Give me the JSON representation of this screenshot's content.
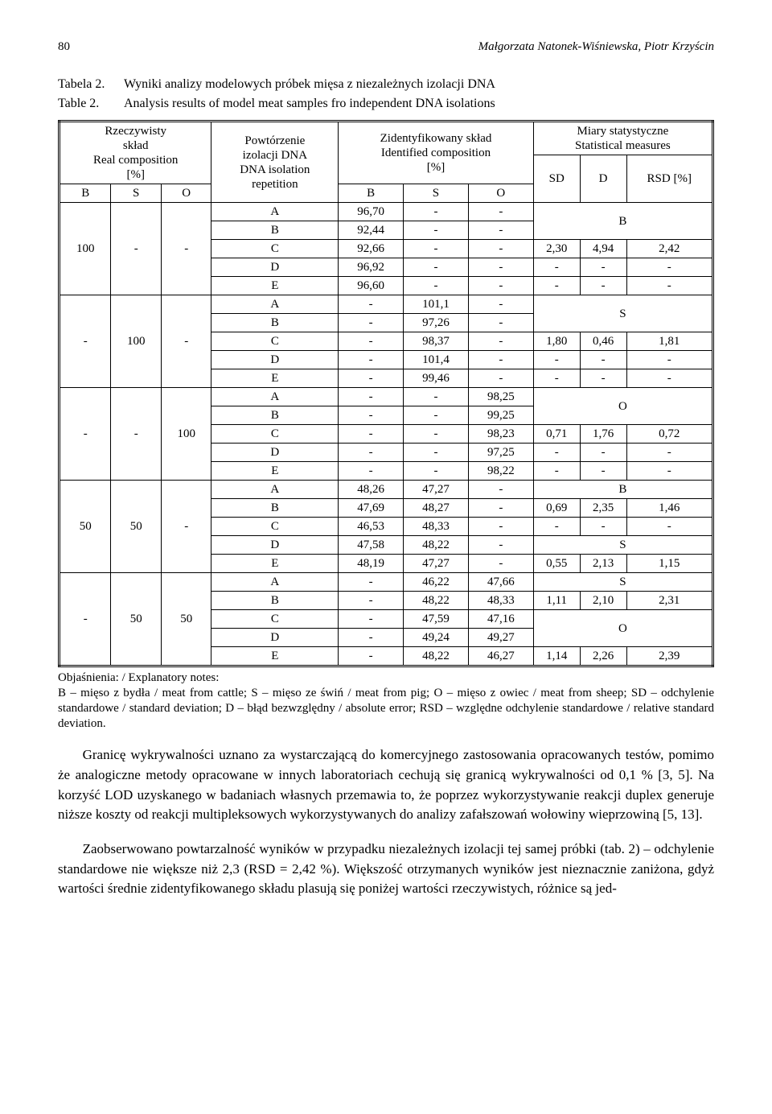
{
  "header": {
    "page_no": "80",
    "authors_it": "Małgorzata Natonek-Wiśniewska, Piotr Krzyścin"
  },
  "captions": {
    "t2_lbl": "Tabela 2.",
    "t2_txt": "Wyniki analizy modelowych próbek mięsa z niezależnych izolacji DNA",
    "t2e_lbl": "Table 2.",
    "t2e_txt": "Analysis results of model meat samples fro independent DNA isolations"
  },
  "thead": {
    "real": "Rzeczywisty\nskład\nReal composition\n[%]",
    "rep": "Powtórzenie\nizolacji DNA\nDNA isolation\nrepetition",
    "ident": "Zidentyfikowany skład\nIdentified composition\n[%]",
    "stats": "Miary statystyczne\nStatistical measures",
    "B": "B",
    "S": "S",
    "O": "O",
    "SD": "SD",
    "D": "D",
    "RSD": "RSD [%]"
  },
  "blocks": [
    {
      "real": [
        "100",
        "-",
        "-"
      ],
      "rows": [
        {
          "rep": "A",
          "b": "96,70",
          "s": "-",
          "o": "-",
          "stat": {
            "type": "label",
            "span": 2,
            "text": "B"
          }
        },
        {
          "rep": "B",
          "b": "92,44",
          "s": "-",
          "o": "-"
        },
        {
          "rep": "C",
          "b": "92,66",
          "s": "-",
          "o": "-",
          "stat": {
            "type": "vals",
            "sd": "2,30",
            "d": "4,94",
            "rsd": "2,42"
          }
        },
        {
          "rep": "D",
          "b": "96,92",
          "s": "-",
          "o": "-",
          "stat": {
            "type": "vals",
            "sd": "-",
            "d": "-",
            "rsd": "-"
          }
        },
        {
          "rep": "E",
          "b": "96,60",
          "s": "-",
          "o": "-",
          "stat": {
            "type": "vals",
            "sd": "-",
            "d": "-",
            "rsd": "-"
          }
        }
      ]
    },
    {
      "real": [
        "-",
        "100",
        "-"
      ],
      "rows": [
        {
          "rep": "A",
          "b": "-",
          "s": "101,1",
          "o": "-",
          "stat": {
            "type": "label",
            "span": 2,
            "text": "S"
          }
        },
        {
          "rep": "B",
          "b": "-",
          "s": "97,26",
          "o": "-"
        },
        {
          "rep": "C",
          "b": "-",
          "s": "98,37",
          "o": "-",
          "stat": {
            "type": "vals",
            "sd": "1,80",
            "d": "0,46",
            "rsd": "1,81"
          }
        },
        {
          "rep": "D",
          "b": "-",
          "s": "101,4",
          "o": "-",
          "stat": {
            "type": "vals",
            "sd": "-",
            "d": "-",
            "rsd": "-"
          }
        },
        {
          "rep": "E",
          "b": "-",
          "s": "99,46",
          "o": "-",
          "stat": {
            "type": "vals",
            "sd": "-",
            "d": "-",
            "rsd": "-"
          }
        }
      ]
    },
    {
      "real": [
        "-",
        "-",
        "100"
      ],
      "rows": [
        {
          "rep": "A",
          "b": "-",
          "s": "-",
          "o": "98,25",
          "stat": {
            "type": "label",
            "span": 2,
            "text": "O"
          }
        },
        {
          "rep": "B",
          "b": "-",
          "s": "-",
          "o": "99,25"
        },
        {
          "rep": "C",
          "b": "-",
          "s": "-",
          "o": "98,23",
          "stat": {
            "type": "vals",
            "sd": "0,71",
            "d": "1,76",
            "rsd": "0,72"
          }
        },
        {
          "rep": "D",
          "b": "-",
          "s": "-",
          "o": "97,25",
          "stat": {
            "type": "vals",
            "sd": "-",
            "d": "-",
            "rsd": "-"
          }
        },
        {
          "rep": "E",
          "b": "-",
          "s": "-",
          "o": "98,22",
          "stat": {
            "type": "vals",
            "sd": "-",
            "d": "-",
            "rsd": "-"
          }
        }
      ]
    },
    {
      "real": [
        "50",
        "50",
        "-"
      ],
      "rows": [
        {
          "rep": "A",
          "b": "48,26",
          "s": "47,27",
          "o": "-",
          "stat": {
            "type": "label",
            "span": 1,
            "text": "B"
          }
        },
        {
          "rep": "B",
          "b": "47,69",
          "s": "48,27",
          "o": "-",
          "stat": {
            "type": "vals",
            "sd": "0,69",
            "d": "2,35",
            "rsd": "1,46"
          }
        },
        {
          "rep": "C",
          "b": "46,53",
          "s": "48,33",
          "o": "-",
          "stat": {
            "type": "vals",
            "sd": "-",
            "d": "-",
            "rsd": "-"
          }
        },
        {
          "rep": "D",
          "b": "47,58",
          "s": "48,22",
          "o": "-",
          "stat": {
            "type": "label",
            "span": 1,
            "text": "S"
          }
        },
        {
          "rep": "E",
          "b": "48,19",
          "s": "47,27",
          "o": "-",
          "stat": {
            "type": "vals",
            "sd": "0,55",
            "d": "2,13",
            "rsd": "1,15"
          }
        }
      ]
    },
    {
      "real": [
        "-",
        "50",
        "50"
      ],
      "rows": [
        {
          "rep": "A",
          "b": "-",
          "s": "46,22",
          "o": "47,66",
          "stat": {
            "type": "label",
            "span": 1,
            "text": "S"
          }
        },
        {
          "rep": "B",
          "b": "-",
          "s": "48,22",
          "o": "48,33",
          "stat": {
            "type": "vals",
            "sd": "1,11",
            "d": "2,10",
            "rsd": "2,31"
          }
        },
        {
          "rep": "C",
          "b": "-",
          "s": "47,59",
          "o": "47,16",
          "stat": {
            "type": "label",
            "span": 2,
            "text": "O"
          }
        },
        {
          "rep": "D",
          "b": "-",
          "s": "49,24",
          "o": "49,27"
        },
        {
          "rep": "E",
          "b": "-",
          "s": "48,22",
          "o": "46,27",
          "stat": {
            "type": "vals",
            "sd": "1,14",
            "d": "2,26",
            "rsd": "2,39"
          }
        }
      ]
    }
  ],
  "notes": "Objaśnienia: / Explanatory notes:\nB – mięso z bydła / meat from cattle; S – mięso ze świń / meat from pig; O – mięso z owiec / meat from sheep; SD – odchylenie standardowe / standard deviation; D – błąd bezwzględny / absolute error; RSD – względne odchylenie standardowe / relative standard deviation.",
  "para1": "Granicę wykrywalności uznano za wystarczającą do komercyjnego zastosowania opracowanych testów, pomimo że analogiczne metody opracowane w innych laboratoriach cechują się granicą wykrywalności od 0,1 % [3, 5]. Na korzyść LOD uzyskanego w badaniach własnych przemawia to, że poprzez wykorzystywanie reakcji duplex generuje niższe koszty od reakcji multipleksowych wykorzystywanych do analizy zafałszowań wołowiny wieprzowiną [5, 13].",
  "para2": "Zaobserwowano powtarzalność wyników w przypadku niezależnych izolacji tej samej próbki (tab. 2) – odchylenie standardowe nie większe niż 2,3 (RSD = 2,42 %). Większość otrzymanych wyników jest nieznacznie zaniżona, gdyż wartości średnie zidentyfikowanego składu plasują się poniżej wartości rzeczywistych, różnice są jed-"
}
